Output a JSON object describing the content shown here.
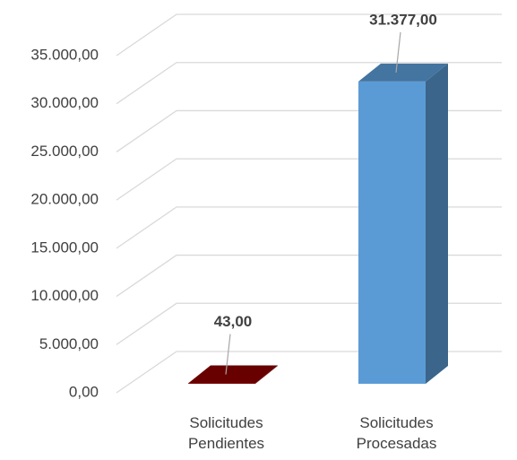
{
  "chart_data": {
    "type": "bar3d",
    "categories": [
      "Solicitudes Pendientes",
      "Solicitudes Procesadas"
    ],
    "values": [
      43,
      31377
    ],
    "value_labels": [
      "43,00",
      "31.377,00"
    ],
    "colors": [
      "#8b0000",
      "#5b9bd5"
    ],
    "ylim": [
      0,
      35000
    ],
    "yticks": [
      {
        "value": 0,
        "label": "0,00"
      },
      {
        "value": 5000,
        "label": "5.000,00"
      },
      {
        "value": 10000,
        "label": "10.000,00"
      },
      {
        "value": 15000,
        "label": "15.000,00"
      },
      {
        "value": 20000,
        "label": "20.000,00"
      },
      {
        "value": 25000,
        "label": "25.000,00"
      },
      {
        "value": 30000,
        "label": "30.000,00"
      },
      {
        "value": 35000,
        "label": "35.000,00"
      }
    ],
    "grid": true
  }
}
